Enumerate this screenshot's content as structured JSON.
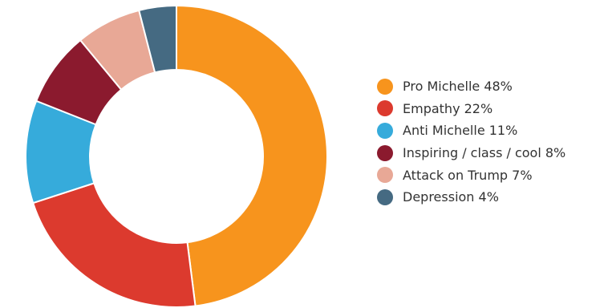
{
  "chart_data": {
    "type": "pie",
    "donut": true,
    "categories": [
      "Pro Michelle",
      "Empathy",
      "Anti Michelle",
      "Inspiring / class / cool",
      "Attack on Trump",
      "Depression"
    ],
    "values": [
      48,
      22,
      11,
      8,
      7,
      4
    ],
    "colors": [
      "#f7941d",
      "#dc3a2e",
      "#36abdb",
      "#8b1a2e",
      "#e8a896",
      "#456a82"
    ],
    "legend_labels": [
      "Pro Michelle 48%",
      "Empathy 22%",
      "Anti Michelle 11%",
      "Inspiring / class / cool 8%",
      "Attack on Trump 7%",
      "Depression 4%"
    ],
    "legend_position": "right"
  }
}
